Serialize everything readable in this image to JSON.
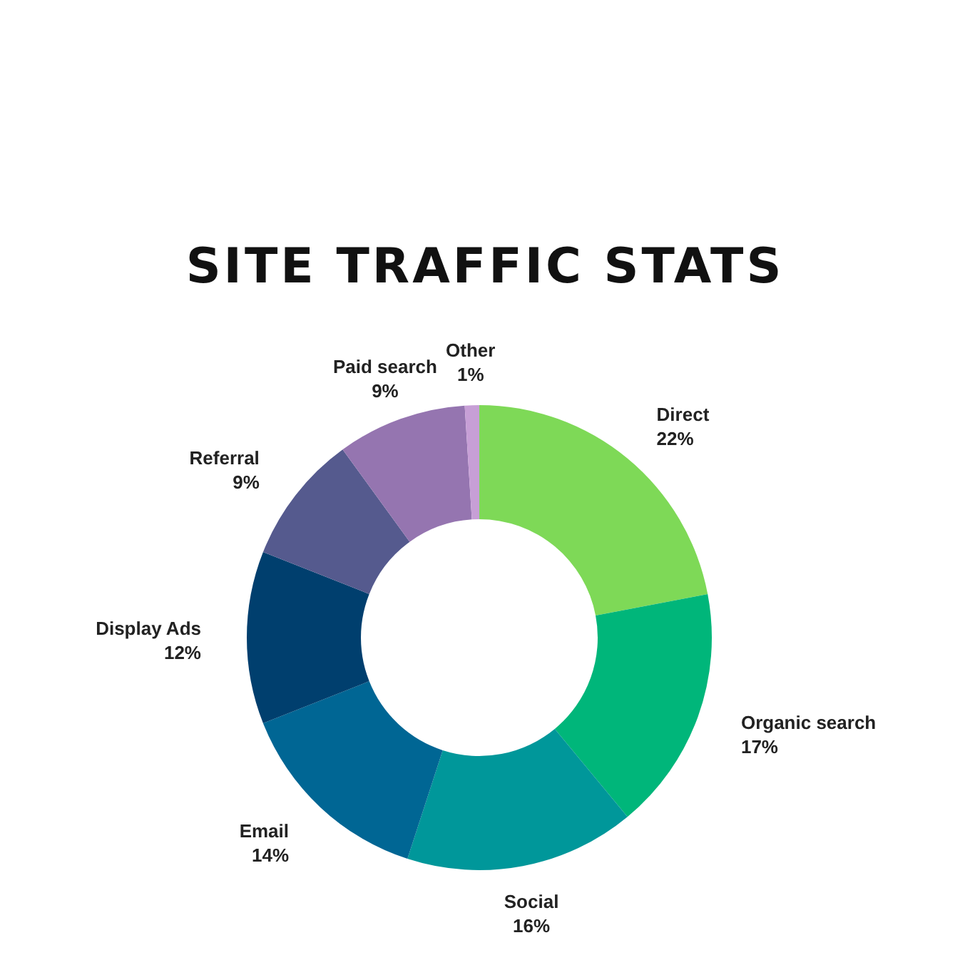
{
  "chart_data": {
    "type": "donut",
    "title": "SITE TRAFFIC STATS",
    "categories": [
      "Direct",
      "Organic search",
      "Social",
      "Email",
      "Display Ads",
      "Referral",
      "Paid search",
      "Other"
    ],
    "values": [
      22,
      17,
      16,
      14,
      12,
      9,
      9,
      1
    ],
    "value_labels": [
      "22%",
      "17%",
      "16%",
      "14%",
      "12%",
      "9%",
      "9%",
      "1%"
    ],
    "colors": [
      "#7ed957",
      "#00b67a",
      "#00979a",
      "#006694",
      "#003f6e",
      "#555a8e",
      "#9575b0",
      "#c79fd6"
    ]
  }
}
